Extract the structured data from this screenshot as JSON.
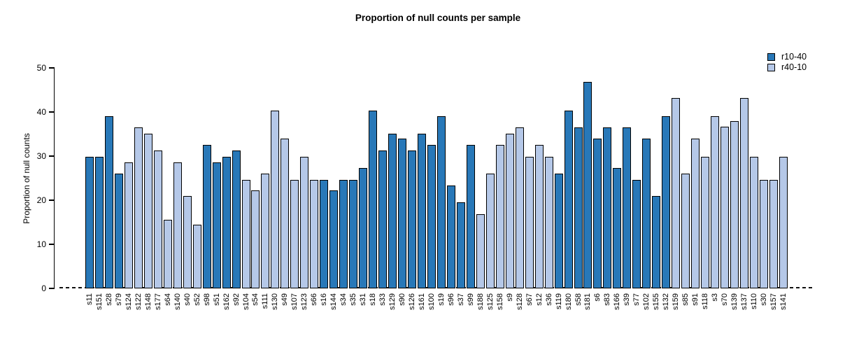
{
  "title": "Proportion of null counts per sample",
  "chart_data": {
    "type": "bar",
    "title": "Proportion of null counts per sample",
    "xlabel": "",
    "ylabel": "Proportion of null counts",
    "ylim": [
      0,
      50
    ],
    "yticks": [
      0,
      10,
      20,
      30,
      40,
      50
    ],
    "grid": false,
    "legend_position": "top-right",
    "zero_line_style": "dashed",
    "series": [
      {
        "name": "r10-40",
        "color": "#2878b8"
      },
      {
        "name": "r40-10",
        "color": "#b5c8e8"
      }
    ],
    "samples": [
      {
        "label": "s11",
        "value": 29.9,
        "series": "r10-40"
      },
      {
        "label": "s151",
        "value": 29.9,
        "series": "r10-40"
      },
      {
        "label": "s28",
        "value": 39.0,
        "series": "r10-40"
      },
      {
        "label": "s79",
        "value": 26.1,
        "series": "r10-40"
      },
      {
        "label": "s124",
        "value": 28.6,
        "series": "r40-10"
      },
      {
        "label": "s122",
        "value": 36.5,
        "series": "r40-10"
      },
      {
        "label": "s148",
        "value": 35.1,
        "series": "r40-10"
      },
      {
        "label": "s177",
        "value": 31.3,
        "series": "r40-10"
      },
      {
        "label": "s64",
        "value": 15.6,
        "series": "r40-10"
      },
      {
        "label": "s140",
        "value": 28.6,
        "series": "r40-10"
      },
      {
        "label": "s40",
        "value": 20.9,
        "series": "r40-10"
      },
      {
        "label": "s52",
        "value": 14.4,
        "series": "r40-10"
      },
      {
        "label": "s98",
        "value": 32.6,
        "series": "r10-40"
      },
      {
        "label": "s51",
        "value": 28.6,
        "series": "r10-40"
      },
      {
        "label": "s162",
        "value": 29.9,
        "series": "r10-40"
      },
      {
        "label": "s92",
        "value": 31.3,
        "series": "r10-40"
      },
      {
        "label": "s104",
        "value": 24.6,
        "series": "r40-10"
      },
      {
        "label": "s54",
        "value": 22.2,
        "series": "r40-10"
      },
      {
        "label": "s111",
        "value": 26.1,
        "series": "r40-10"
      },
      {
        "label": "s130",
        "value": 40.3,
        "series": "r40-10"
      },
      {
        "label": "s49",
        "value": 33.9,
        "series": "r40-10"
      },
      {
        "label": "s107",
        "value": 24.6,
        "series": "r40-10"
      },
      {
        "label": "s123",
        "value": 29.9,
        "series": "r40-10"
      },
      {
        "label": "s66",
        "value": 24.6,
        "series": "r40-10"
      },
      {
        "label": "s16",
        "value": 24.6,
        "series": "r10-40"
      },
      {
        "label": "s144",
        "value": 22.2,
        "series": "r10-40"
      },
      {
        "label": "s34",
        "value": 24.6,
        "series": "r10-40"
      },
      {
        "label": "s35",
        "value": 24.6,
        "series": "r10-40"
      },
      {
        "label": "s31",
        "value": 27.3,
        "series": "r10-40"
      },
      {
        "label": "s18",
        "value": 40.3,
        "series": "r10-40"
      },
      {
        "label": "s33",
        "value": 31.3,
        "series": "r10-40"
      },
      {
        "label": "s129",
        "value": 35.1,
        "series": "r10-40"
      },
      {
        "label": "s90",
        "value": 33.9,
        "series": "r10-40"
      },
      {
        "label": "s126",
        "value": 31.3,
        "series": "r10-40"
      },
      {
        "label": "s161",
        "value": 35.1,
        "series": "r10-40"
      },
      {
        "label": "s100",
        "value": 32.6,
        "series": "r10-40"
      },
      {
        "label": "s19",
        "value": 39.0,
        "series": "r10-40"
      },
      {
        "label": "s96",
        "value": 23.4,
        "series": "r10-40"
      },
      {
        "label": "s37",
        "value": 19.6,
        "series": "r10-40"
      },
      {
        "label": "s99",
        "value": 32.6,
        "series": "r10-40"
      },
      {
        "label": "s188",
        "value": 16.9,
        "series": "r40-10"
      },
      {
        "label": "s125",
        "value": 26.1,
        "series": "r40-10"
      },
      {
        "label": "s158",
        "value": 32.6,
        "series": "r40-10"
      },
      {
        "label": "s9",
        "value": 35.1,
        "series": "r40-10"
      },
      {
        "label": "s128",
        "value": 36.5,
        "series": "r40-10"
      },
      {
        "label": "s67",
        "value": 29.9,
        "series": "r40-10"
      },
      {
        "label": "s12",
        "value": 32.6,
        "series": "r40-10"
      },
      {
        "label": "s36",
        "value": 29.9,
        "series": "r40-10"
      },
      {
        "label": "s119",
        "value": 26.1,
        "series": "r10-40"
      },
      {
        "label": "s180",
        "value": 40.3,
        "series": "r10-40"
      },
      {
        "label": "s58",
        "value": 36.5,
        "series": "r10-40"
      },
      {
        "label": "s181",
        "value": 46.9,
        "series": "r10-40"
      },
      {
        "label": "s6",
        "value": 33.9,
        "series": "r10-40"
      },
      {
        "label": "s83",
        "value": 36.5,
        "series": "r10-40"
      },
      {
        "label": "s166",
        "value": 27.3,
        "series": "r10-40"
      },
      {
        "label": "s39",
        "value": 36.5,
        "series": "r10-40"
      },
      {
        "label": "s77",
        "value": 24.6,
        "series": "r10-40"
      },
      {
        "label": "s102",
        "value": 33.9,
        "series": "r10-40"
      },
      {
        "label": "s155",
        "value": 20.9,
        "series": "r10-40"
      },
      {
        "label": "s132",
        "value": 39.0,
        "series": "r10-40"
      },
      {
        "label": "s159",
        "value": 43.1,
        "series": "r40-10"
      },
      {
        "label": "s85",
        "value": 26.1,
        "series": "r40-10"
      },
      {
        "label": "s91",
        "value": 33.9,
        "series": "r40-10"
      },
      {
        "label": "s118",
        "value": 29.9,
        "series": "r40-10"
      },
      {
        "label": "s3",
        "value": 39.0,
        "series": "r40-10"
      },
      {
        "label": "s70",
        "value": 36.7,
        "series": "r40-10"
      },
      {
        "label": "s139",
        "value": 37.9,
        "series": "r40-10"
      },
      {
        "label": "s137",
        "value": 43.1,
        "series": "r40-10"
      },
      {
        "label": "s110",
        "value": 29.9,
        "series": "r40-10"
      },
      {
        "label": "s30",
        "value": 24.6,
        "series": "r40-10"
      },
      {
        "label": "s157",
        "value": 24.6,
        "series": "r40-10"
      },
      {
        "label": "s141",
        "value": 29.9,
        "series": "r40-10"
      }
    ]
  }
}
